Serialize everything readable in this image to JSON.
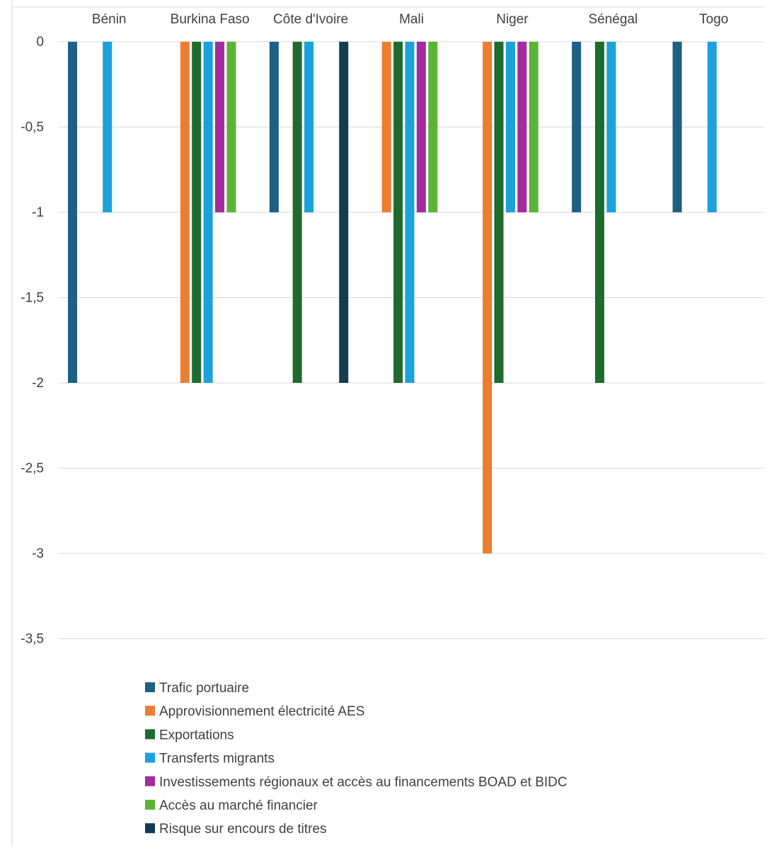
{
  "chart_data": {
    "type": "bar",
    "categories": [
      "Bénin",
      "Burkina Faso",
      "Côte d'Ivoire",
      "Mali",
      "Niger",
      "Sénégal",
      "Togo"
    ],
    "series": [
      {
        "name": "Trafic portuaire",
        "color": "#1f5f85",
        "values": [
          -2,
          null,
          -1,
          null,
          null,
          -1,
          -1
        ]
      },
      {
        "name": "Approvisionnement électricité AES",
        "color": "#ed7d31",
        "values": [
          null,
          -2,
          null,
          -1,
          -3,
          null,
          null
        ]
      },
      {
        "name": "Exportations",
        "color": "#1e6b2e",
        "values": [
          null,
          -2,
          -2,
          -2,
          -2,
          -2,
          null
        ]
      },
      {
        "name": "Transferts migrants",
        "color": "#1ba1dc",
        "values": [
          -1,
          -2,
          -1,
          -2,
          -1,
          -1,
          -1
        ]
      },
      {
        "name": "Investissements régionaux et accès au financements BOAD et BIDC",
        "color": "#a52a9e",
        "values": [
          null,
          -1,
          null,
          -1,
          -1,
          null,
          null
        ]
      },
      {
        "name": "Accès au marché financier",
        "color": "#5cb336",
        "values": [
          null,
          -1,
          null,
          -1,
          -1,
          null,
          null
        ]
      },
      {
        "name": "Risque sur encours de titres",
        "color": "#133b52",
        "values": [
          null,
          null,
          -2,
          null,
          null,
          null,
          null
        ]
      }
    ],
    "yticks": [
      "0",
      "-0,5",
      "-1",
      "-1,5",
      "-2",
      "-2,5",
      "-3",
      "-3,5"
    ],
    "ytick_values": [
      0,
      -0.5,
      -1,
      -1.5,
      -2,
      -2.5,
      -3,
      -3.5
    ],
    "ylim": [
      -3.5,
      0
    ],
    "grid": true,
    "legend_position": "bottom",
    "title": "",
    "xlabel": "",
    "ylabel": ""
  }
}
